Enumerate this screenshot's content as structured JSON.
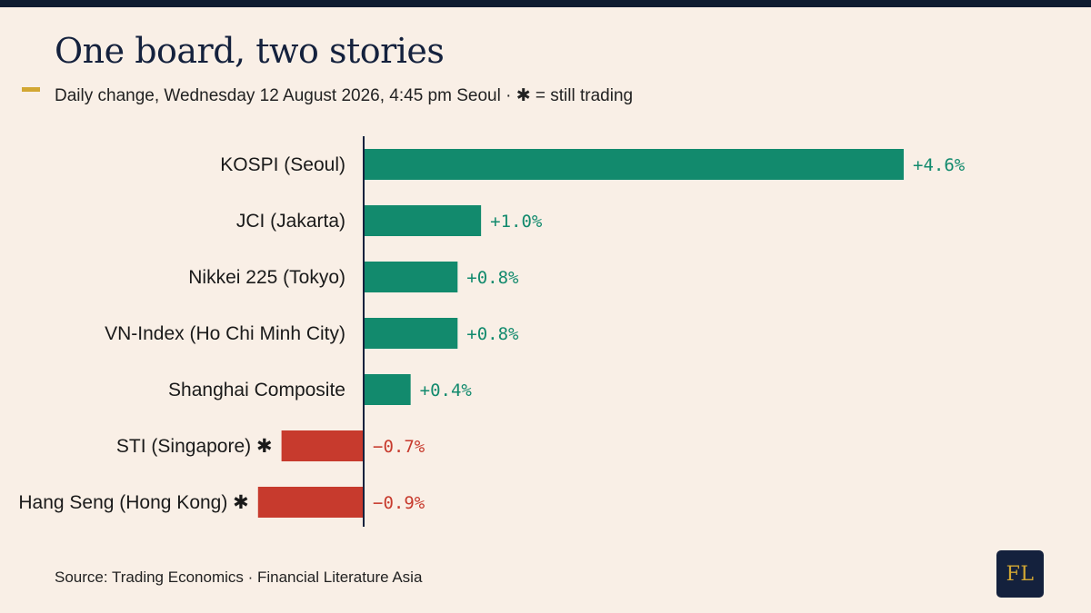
{
  "title": "One board, two stories",
  "subtitle": "Daily change, Wednesday 12 August 2026, 4:45 pm Seoul · ✱ = still trading",
  "source": "Source: Trading Economics · Financial Literature Asia",
  "logo_text": "FL",
  "colors": {
    "positive": "#128a6d",
    "negative": "#c73a2d",
    "axis": "#14213d",
    "accent": "#d2a733",
    "background": "#f9efe6"
  },
  "chart_data": {
    "type": "bar",
    "orientation": "horizontal",
    "title": "One board, two stories",
    "subtitle": "Daily change, Wednesday 12 August 2026, 4:45 pm Seoul · ✱ = still trading",
    "unit": "%",
    "categories": [
      "KOSPI (Seoul)",
      "JCI (Jakarta)",
      "Nikkei 225 (Tokyo)",
      "VN-Index (Ho Chi Minh City)",
      "Shanghai Composite",
      "STI (Singapore) ✱",
      "Hang Seng (Hong Kong) ✱"
    ],
    "values": [
      4.6,
      1.0,
      0.8,
      0.8,
      0.4,
      -0.7,
      -0.9
    ],
    "value_labels": [
      "+4.6%",
      "+1.0%",
      "+0.8%",
      "+0.8%",
      "+0.4%",
      "−0.7%",
      "−0.9%"
    ],
    "still_trading": [
      false,
      false,
      false,
      false,
      false,
      true,
      true
    ],
    "xlim": [
      -0.95,
      4.6
    ],
    "grid": false,
    "legend": "none"
  }
}
